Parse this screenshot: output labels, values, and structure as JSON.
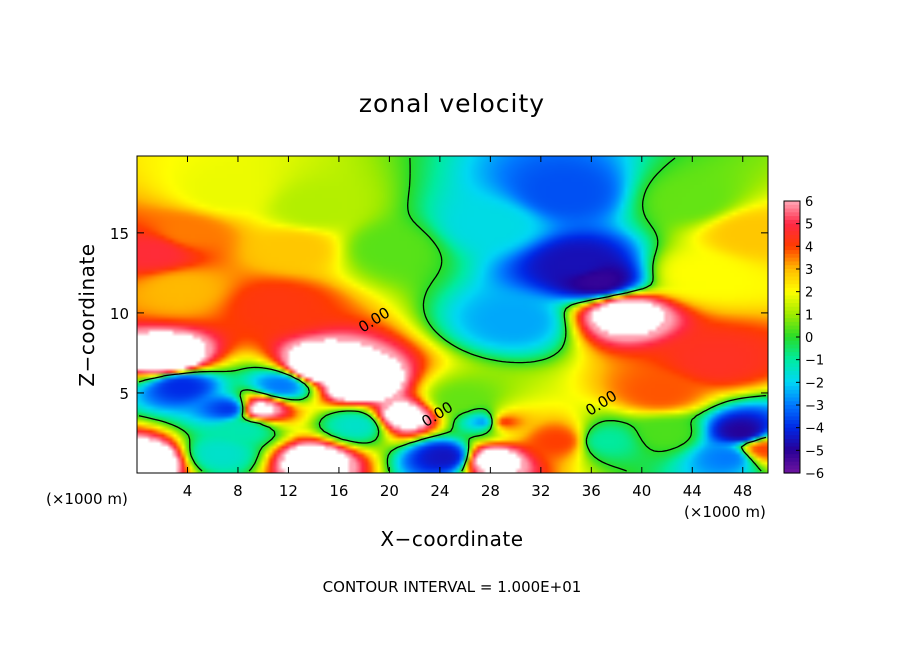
{
  "chart_data": {
    "type": "heatmap",
    "title": "zonal velocity",
    "xlabel": "X−coordinate",
    "ylabel": "Z−coordinate",
    "x_unit": "(×1000 m)",
    "y_unit": "(×1000 m)",
    "xlim": [
      0,
      50
    ],
    "ylim": [
      0,
      19.8
    ],
    "x_ticks": [
      4,
      8,
      12,
      16,
      20,
      24,
      28,
      32,
      36,
      40,
      44,
      48
    ],
    "y_ticks": [
      5,
      10,
      15
    ],
    "colorbar": {
      "range": [
        -6,
        6
      ],
      "ticks": [
        "6",
        "5",
        "4",
        "3",
        "2",
        "1",
        "0",
        "−1",
        "−2",
        "−3",
        "−4",
        "−5",
        "−6"
      ],
      "out_of_range_color": "#ffffff"
    },
    "contour_note": "CONTOUR INTERVAL = 1.000E+01",
    "contour_labels": [
      {
        "text": "0.00",
        "x": 19.0,
        "y": 9.3
      },
      {
        "text": "0.00",
        "x": 24.0,
        "y": 3.4
      },
      {
        "text": "0.00",
        "x": 37.0,
        "y": 4.1
      }
    ],
    "field_features": [
      {
        "x": 1.5,
        "y": 13.8,
        "value": 4.8
      },
      {
        "x": 4.0,
        "y": 15.0,
        "value": 3.5
      },
      {
        "x": 3.5,
        "y": 11.5,
        "value": 3.0
      },
      {
        "x": 11.0,
        "y": 10.5,
        "value": 4.2
      },
      {
        "x": 12.5,
        "y": 14.0,
        "value": 2.8
      },
      {
        "x": 7.0,
        "y": 17.5,
        "value": 1.8
      },
      {
        "x": 14.0,
        "y": 16.5,
        "value": 1.2
      },
      {
        "x": 20.0,
        "y": 14.0,
        "value": 0.4
      },
      {
        "x": 28.0,
        "y": 15.5,
        "value": -1.8
      },
      {
        "x": 34.0,
        "y": 17.5,
        "value": -3.5
      },
      {
        "x": 35.0,
        "y": 13.0,
        "value": -4.6
      },
      {
        "x": 36.5,
        "y": 12.0,
        "value": -5.2
      },
      {
        "x": 38.5,
        "y": 10.0,
        "value": 7.0
      },
      {
        "x": 30.0,
        "y": 9.5,
        "value": -2.5
      },
      {
        "x": 44.0,
        "y": 17.0,
        "value": 0.5
      },
      {
        "x": 48.5,
        "y": 15.0,
        "value": 2.8
      },
      {
        "x": 44.5,
        "y": 12.5,
        "value": 2.0
      },
      {
        "x": 46.0,
        "y": 7.0,
        "value": 4.5
      },
      {
        "x": 41.5,
        "y": 5.0,
        "value": 3.8
      },
      {
        "x": 42.0,
        "y": 2.5,
        "value": 0.3
      },
      {
        "x": 2.5,
        "y": 7.0,
        "value": 8.0
      },
      {
        "x": 3.5,
        "y": 5.5,
        "value": -4.0
      },
      {
        "x": 7.5,
        "y": 4.0,
        "value": -4.0
      },
      {
        "x": 9.5,
        "y": 4.0,
        "value": 7.0
      },
      {
        "x": 11.5,
        "y": 5.5,
        "value": -3.0
      },
      {
        "x": 14.0,
        "y": 6.5,
        "value": 8.0
      },
      {
        "x": 17.5,
        "y": 5.5,
        "value": 8.0
      },
      {
        "x": 21.0,
        "y": 3.5,
        "value": 7.0
      },
      {
        "x": 17.5,
        "y": 3.0,
        "value": -1.5
      },
      {
        "x": 8.5,
        "y": 2.8,
        "value": -1.2
      },
      {
        "x": 28.0,
        "y": 3.2,
        "value": -5.5
      },
      {
        "x": 28.5,
        "y": 3.2,
        "value": 7.0
      },
      {
        "x": 25.5,
        "y": 4.5,
        "value": 0.5
      },
      {
        "x": 33.5,
        "y": 2.0,
        "value": 4.0
      },
      {
        "x": 37.0,
        "y": 2.0,
        "value": -1.0
      },
      {
        "x": 1.0,
        "y": 0.8,
        "value": 7.5
      },
      {
        "x": 14.0,
        "y": 0.8,
        "value": 7.0
      },
      {
        "x": 28.0,
        "y": 0.8,
        "value": 7.0
      },
      {
        "x": 24.5,
        "y": 1.0,
        "value": -4.5
      },
      {
        "x": 6.5,
        "y": 1.2,
        "value": -1.5
      },
      {
        "x": 48.0,
        "y": 2.5,
        "value": -5.0
      },
      {
        "x": 47.0,
        "y": 1.0,
        "value": -3.0
      },
      {
        "x": 49.5,
        "y": 1.5,
        "value": 4.0
      }
    ]
  }
}
